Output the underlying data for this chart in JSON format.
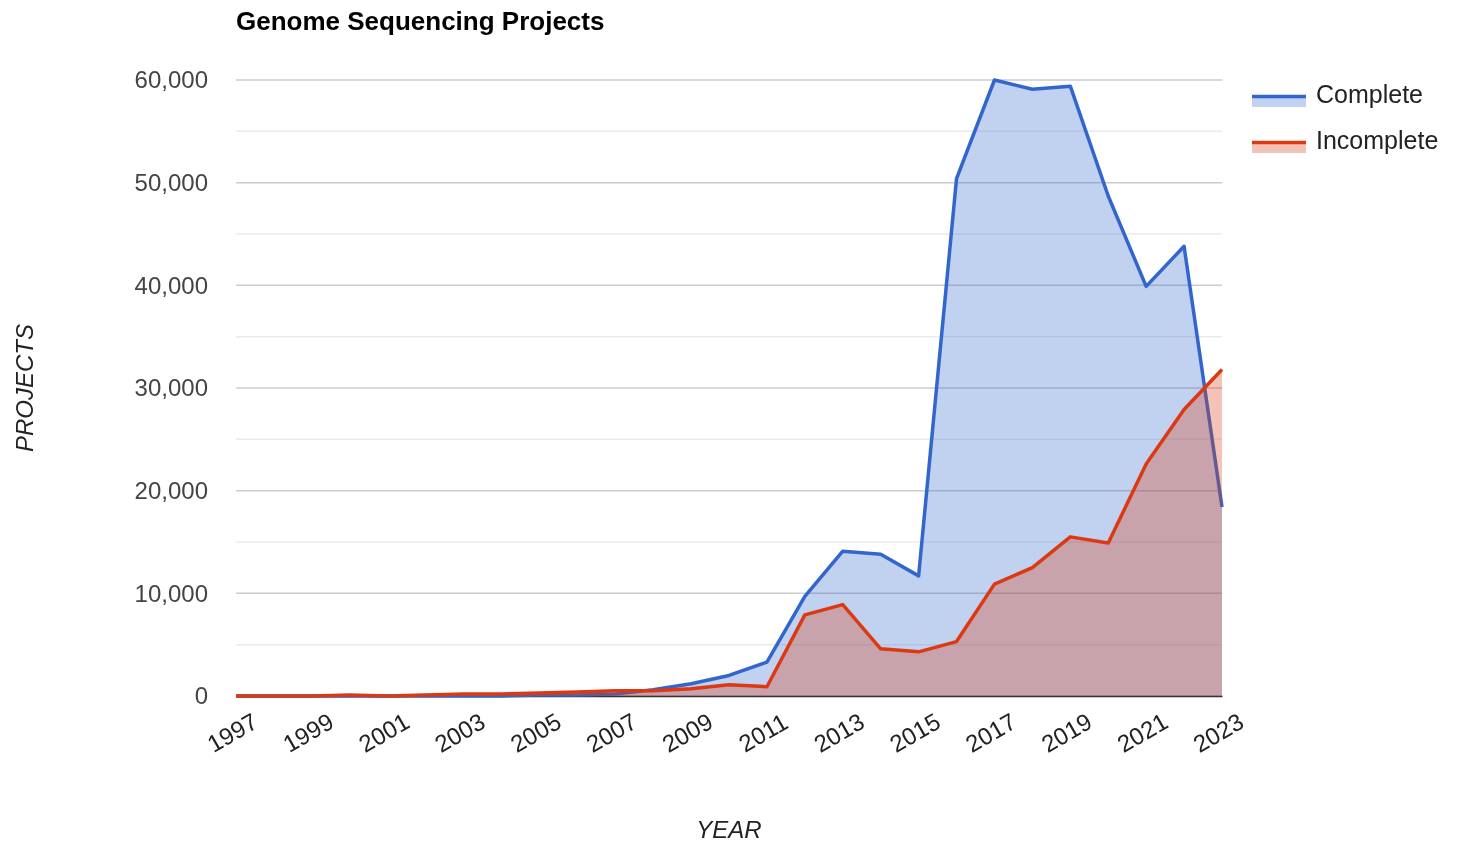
{
  "chart_data": {
    "type": "area",
    "title": "Genome Sequencing Projects",
    "xlabel": "YEAR",
    "ylabel": "PROJECTS",
    "x": [
      1997,
      1998,
      1999,
      2000,
      2001,
      2002,
      2003,
      2004,
      2005,
      2006,
      2007,
      2008,
      2009,
      2010,
      2011,
      2012,
      2013,
      2014,
      2015,
      2016,
      2017,
      2018,
      2019,
      2020,
      2021,
      2022,
      2023
    ],
    "series": [
      {
        "name": "Complete",
        "color": "#3366cc",
        "values": [
          0,
          0,
          0,
          0,
          0,
          0,
          0,
          0,
          100,
          100,
          200,
          600,
          1200,
          2000,
          3300,
          9700,
          14100,
          13800,
          11700,
          50400,
          60000,
          59100,
          59400,
          48700,
          39900,
          43800,
          18400
        ]
      },
      {
        "name": "Incomplete",
        "color": "#dc3912",
        "values": [
          0,
          0,
          0,
          100,
          0,
          100,
          200,
          200,
          300,
          400,
          500,
          500,
          700,
          1100,
          900,
          7900,
          8900,
          4600,
          4300,
          5300,
          10900,
          12500,
          15500,
          14900,
          22600,
          27900,
          31800
        ]
      }
    ],
    "xlim": [
      1997,
      2023
    ],
    "xticks": [
      1997,
      1999,
      2001,
      2003,
      2005,
      2007,
      2009,
      2011,
      2013,
      2015,
      2017,
      2019,
      2021,
      2023
    ],
    "ylim": [
      0,
      60000
    ],
    "yticks": [
      {
        "value": 0,
        "label": "0"
      },
      {
        "value": 5000,
        "label": null
      },
      {
        "value": 10000,
        "label": "10,000"
      },
      {
        "value": 15000,
        "label": null
      },
      {
        "value": 20000,
        "label": "20,000"
      },
      {
        "value": 25000,
        "label": null
      },
      {
        "value": 30000,
        "label": "30,000"
      },
      {
        "value": 35000,
        "label": null
      },
      {
        "value": 40000,
        "label": "40,000"
      },
      {
        "value": 45000,
        "label": null
      },
      {
        "value": 50000,
        "label": "50,000"
      },
      {
        "value": 55000,
        "label": null
      },
      {
        "value": 60000,
        "label": "60,000"
      }
    ],
    "grid": "y",
    "legend": "top right",
    "marker": "none",
    "line_style": "solid"
  }
}
